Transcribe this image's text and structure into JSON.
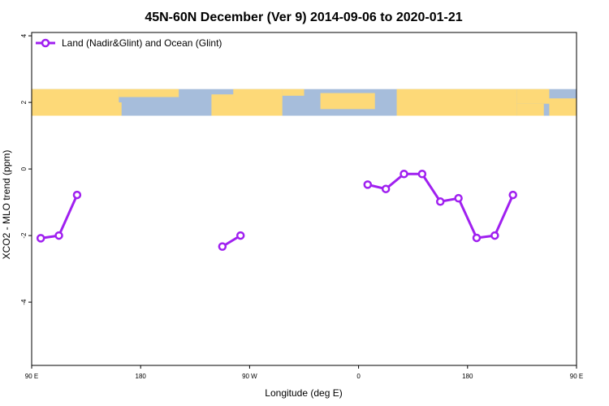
{
  "chart_data": {
    "type": "line",
    "title": "45N-60N December (Ver 9)   2014-09-06 to 2020-01-21",
    "xlabel": "Longitude (deg E)",
    "ylabel": "XCO2 - MLO trend (ppm)",
    "xlim": [
      90,
      450
    ],
    "ylim": [
      -5.9,
      4.1
    ],
    "x_ticks": [
      {
        "value": 90,
        "label": "90 E"
      },
      {
        "value": 180,
        "label": "180"
      },
      {
        "value": 270,
        "label": "90 W"
      },
      {
        "value": 360,
        "label": "0"
      },
      {
        "value": 450,
        "label": "180"
      },
      {
        "value": 540,
        "label": "90 E"
      }
    ],
    "y_ticks": [
      {
        "value": 4,
        "label": "4"
      },
      {
        "value": 2,
        "label": "2"
      },
      {
        "value": 0,
        "label": "0"
      },
      {
        "value": -2,
        "label": "-2"
      },
      {
        "value": -4,
        "label": "-4"
      }
    ],
    "legend": {
      "position": "top-left"
    },
    "map_band": {
      "y_range": [
        1.6,
        2.4
      ],
      "ocean_color": "#a6bddb",
      "land_color": "#fdd978"
    },
    "grid": false,
    "series": [
      {
        "name": "Land (Nadir&Glint) and Ocean (Glint)",
        "color": "#a020f0",
        "segments": [
          [
            [
              97.5,
              -2.08
            ],
            [
              112.5,
              -2.0
            ],
            [
              127.5,
              -0.78
            ]
          ],
          [
            [
              247.5,
              -2.33
            ],
            [
              262.5,
              -2.0
            ]
          ],
          [
            [
              367.5,
              -0.47
            ],
            [
              382.5,
              -0.6
            ],
            [
              397.5,
              -0.15
            ],
            [
              412.5,
              -0.15
            ],
            [
              427.5,
              -0.98
            ],
            [
              442.5,
              -0.88
            ],
            [
              457.5,
              -2.07
            ],
            [
              472.5,
              -2.0
            ],
            [
              487.5,
              -0.78
            ]
          ]
        ]
      }
    ]
  }
}
